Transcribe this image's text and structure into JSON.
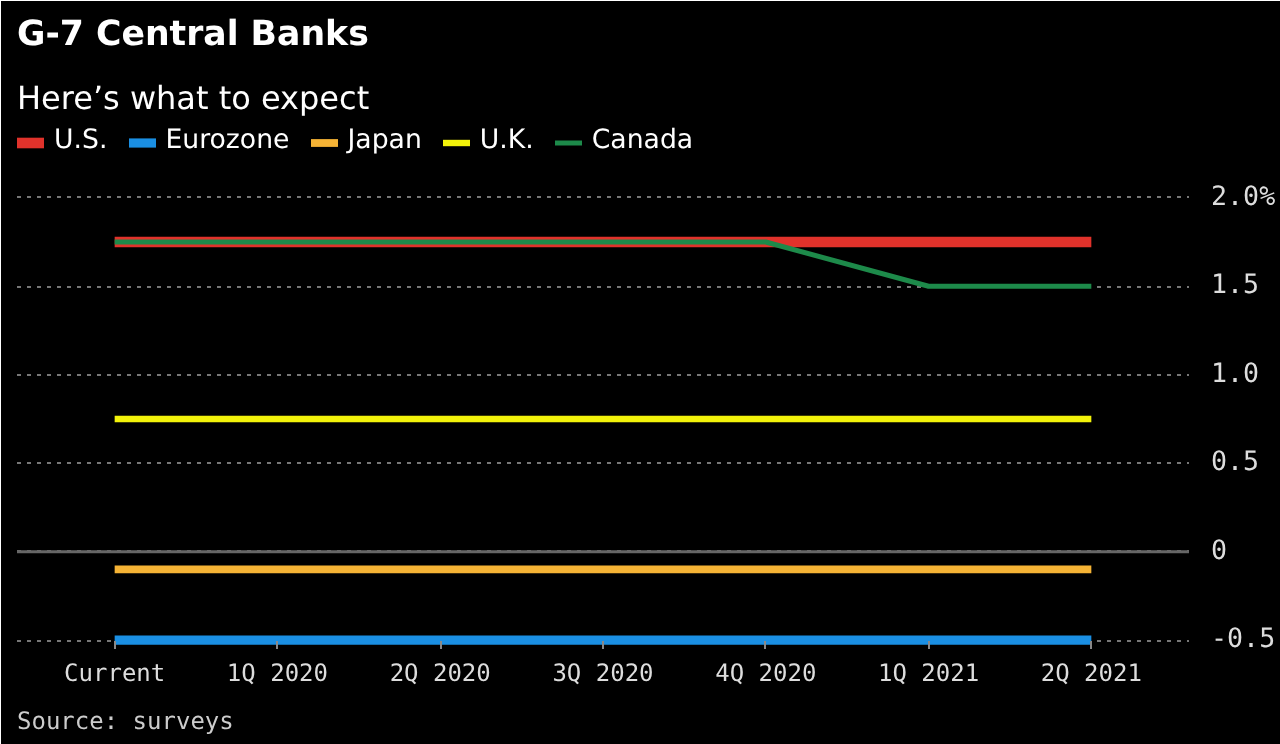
{
  "chart_data": {
    "type": "line",
    "title": "G-7 Central Banks",
    "subtitle": "Here’s what to expect",
    "categories": [
      "Current",
      "1Q 2020",
      "2Q 2020",
      "3Q 2020",
      "4Q 2020",
      "1Q 2021",
      "2Q 2021"
    ],
    "series": [
      {
        "name": "U.S.",
        "color": "#e0322b",
        "values": [
          1.75,
          1.75,
          1.75,
          1.75,
          1.75,
          1.75,
          1.75
        ]
      },
      {
        "name": "Eurozone",
        "color": "#1a8fe3",
        "values": [
          -0.5,
          -0.5,
          -0.5,
          -0.5,
          -0.5,
          -0.5,
          -0.5
        ]
      },
      {
        "name": "Japan",
        "color": "#f5b335",
        "values": [
          -0.1,
          -0.1,
          -0.1,
          -0.1,
          -0.1,
          -0.1,
          -0.1
        ]
      },
      {
        "name": "U.K.",
        "color": "#f2f20a",
        "values": [
          0.75,
          0.75,
          0.75,
          0.75,
          0.75,
          0.75,
          0.75
        ]
      },
      {
        "name": "Canada",
        "color": "#1d8a4a",
        "values": [
          1.75,
          1.75,
          1.75,
          1.75,
          1.75,
          1.5,
          1.5
        ]
      }
    ],
    "ylim": [
      -0.5,
      2.0
    ],
    "yticks": [
      {
        "value": 2.0,
        "label": "2.0%"
      },
      {
        "value": 1.5,
        "label": "1.5"
      },
      {
        "value": 1.0,
        "label": "1.0"
      },
      {
        "value": 0.5,
        "label": "0.5"
      },
      {
        "value": 0,
        "label": "0"
      },
      {
        "value": -0.5,
        "label": "-0.5"
      }
    ],
    "ref_lines": [
      {
        "axis": "y",
        "value": 0,
        "color": "#666666",
        "line_style": "solid"
      }
    ],
    "grid": "y",
    "legend": "top left",
    "marker": "none",
    "line_style": "solid",
    "annotations": [
      "Source: surveys"
    ]
  }
}
